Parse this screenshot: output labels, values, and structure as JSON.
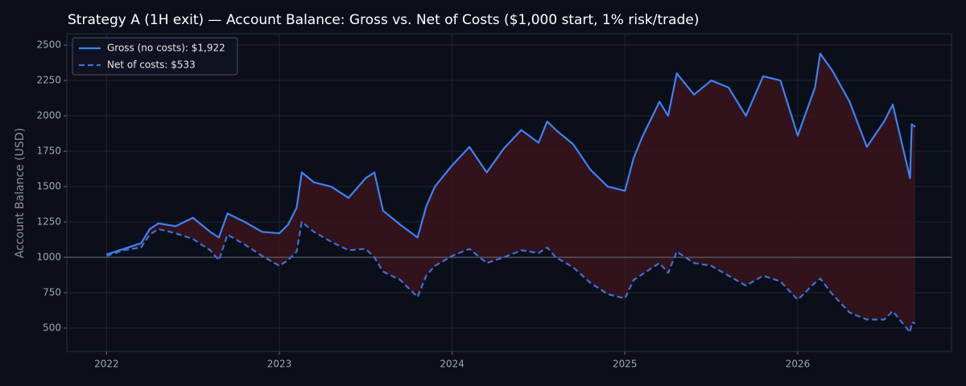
{
  "chart_data": {
    "type": "line",
    "title": "Strategy A (1H exit) — Account Balance: Gross vs. Net of Costs ($1,000 start, 1% risk/trade)",
    "y_label": "Account Balance (USD)",
    "x": [
      2022.0,
      2022.1,
      2022.2,
      2022.25,
      2022.3,
      2022.4,
      2022.5,
      2022.6,
      2022.65,
      2022.7,
      2022.8,
      2022.9,
      2023.0,
      2023.05,
      2023.1,
      2023.13,
      2023.2,
      2023.3,
      2023.4,
      2023.5,
      2023.55,
      2023.6,
      2023.7,
      2023.8,
      2023.85,
      2023.9,
      2024.0,
      2024.1,
      2024.2,
      2024.3,
      2024.4,
      2024.5,
      2024.55,
      2024.6,
      2024.7,
      2024.8,
      2024.9,
      2025.0,
      2025.05,
      2025.1,
      2025.2,
      2025.25,
      2025.3,
      2025.4,
      2025.5,
      2025.6,
      2025.7,
      2025.8,
      2025.9,
      2026.0,
      2026.1,
      2026.13,
      2026.2,
      2026.3,
      2026.4,
      2026.5,
      2026.55,
      2026.65,
      2026.66,
      2026.68
    ],
    "series": [
      {
        "name": "Gross (no costs): $1,922",
        "color": "#3b82f6",
        "dash": false,
        "values": [
          1020,
          1060,
          1100,
          1200,
          1240,
          1220,
          1280,
          1180,
          1140,
          1310,
          1250,
          1180,
          1170,
          1230,
          1350,
          1600,
          1530,
          1500,
          1420,
          1560,
          1600,
          1330,
          1230,
          1140,
          1360,
          1500,
          1650,
          1780,
          1600,
          1770,
          1900,
          1810,
          1960,
          1900,
          1800,
          1620,
          1500,
          1470,
          1700,
          1850,
          2100,
          2000,
          2300,
          2150,
          2250,
          2200,
          2000,
          2280,
          2250,
          1860,
          2200,
          2440,
          2320,
          2100,
          1780,
          1960,
          2080,
          1560,
          1940,
          1922
        ]
      },
      {
        "name": "Net of costs: $533",
        "color": "#3d6fd6",
        "dash": true,
        "values": [
          1010,
          1050,
          1070,
          1160,
          1200,
          1170,
          1130,
          1050,
          980,
          1160,
          1090,
          1010,
          940,
          980,
          1040,
          1250,
          1180,
          1110,
          1050,
          1060,
          1000,
          900,
          840,
          720,
          870,
          940,
          1010,
          1060,
          960,
          1000,
          1050,
          1030,
          1070,
          1000,
          930,
          820,
          740,
          710,
          840,
          880,
          960,
          890,
          1040,
          960,
          940,
          870,
          800,
          870,
          830,
          700,
          820,
          850,
          740,
          610,
          560,
          560,
          620,
          470,
          540,
          533
        ]
      }
    ],
    "xlim": [
      2021.77,
      2026.89
    ],
    "xticks": [
      2022,
      2023,
      2024,
      2025,
      2026
    ],
    "ylim": [
      335,
      2580
    ],
    "yticks": [
      500,
      750,
      1000,
      1250,
      1500,
      1750,
      2000,
      2250,
      2500
    ],
    "hline": 1000,
    "fill_between": true,
    "fill_color": "#3a141c",
    "grid": true,
    "legend": "upper left"
  }
}
